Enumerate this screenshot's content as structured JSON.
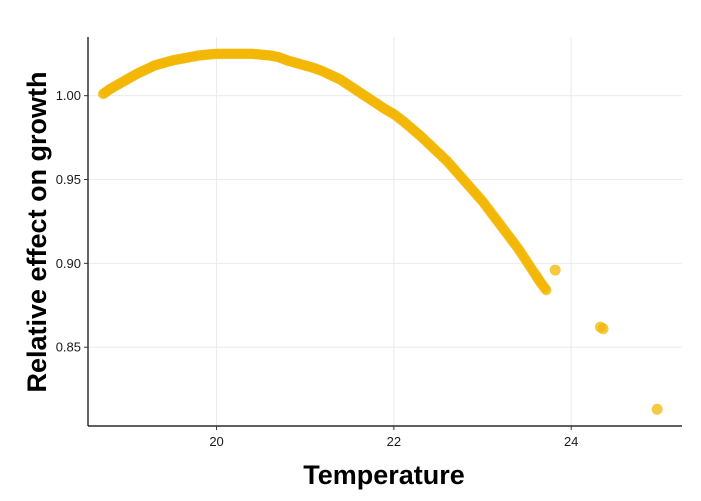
{
  "chart_data": {
    "type": "scatter",
    "title": "",
    "xlabel": "Temperature",
    "ylabel": "Relative effect on growth",
    "xlim": [
      18.55,
      25.25
    ],
    "ylim": [
      0.803,
      1.035
    ],
    "x_ticks": [
      20,
      22,
      24
    ],
    "y_ticks": [
      0.85,
      0.9,
      0.95,
      1.0
    ],
    "x_tick_labels": [
      "20",
      "22",
      "24"
    ],
    "y_tick_labels": [
      "0.85",
      "0.90",
      "0.95",
      "1.00"
    ],
    "grid": true,
    "legend": "none",
    "point_color": "#f2b705",
    "curve": {
      "description_model": "quadratic",
      "peak_x": 20.25,
      "peak_y": 1.025,
      "points": [
        [
          18.72,
          1.001
        ],
        [
          18.8,
          1.004
        ],
        [
          18.9,
          1.007
        ],
        [
          19.0,
          1.01
        ],
        [
          19.1,
          1.013
        ],
        [
          19.2,
          1.0155
        ],
        [
          19.3,
          1.018
        ],
        [
          19.4,
          1.0195
        ],
        [
          19.5,
          1.021
        ],
        [
          19.6,
          1.022
        ],
        [
          19.7,
          1.023
        ],
        [
          19.8,
          1.024
        ],
        [
          19.9,
          1.0245
        ],
        [
          20.0,
          1.025
        ],
        [
          20.1,
          1.025
        ],
        [
          20.2,
          1.025
        ],
        [
          20.3,
          1.025
        ],
        [
          20.4,
          1.025
        ],
        [
          20.5,
          1.0245
        ],
        [
          20.6,
          1.024
        ],
        [
          20.7,
          1.023
        ],
        [
          20.8,
          1.021
        ],
        [
          20.9,
          1.0195
        ],
        [
          21.0,
          1.018
        ],
        [
          21.1,
          1.0165
        ],
        [
          21.2,
          1.0145
        ],
        [
          21.3,
          1.012
        ],
        [
          21.4,
          1.0095
        ],
        [
          21.5,
          1.006
        ],
        [
          21.6,
          1.0025
        ],
        [
          21.7,
          0.999
        ],
        [
          21.8,
          0.9955
        ],
        [
          21.9,
          0.992
        ],
        [
          22.0,
          0.989
        ],
        [
          22.1,
          0.985
        ],
        [
          22.2,
          0.9805
        ],
        [
          22.3,
          0.976
        ],
        [
          22.4,
          0.971
        ],
        [
          22.5,
          0.966
        ],
        [
          22.6,
          0.961
        ],
        [
          22.7,
          0.955
        ],
        [
          22.8,
          0.949
        ],
        [
          22.9,
          0.943
        ],
        [
          23.0,
          0.937
        ],
        [
          23.1,
          0.93
        ],
        [
          23.2,
          0.923
        ],
        [
          23.3,
          0.916
        ],
        [
          23.4,
          0.909
        ],
        [
          23.5,
          0.901
        ],
        [
          23.6,
          0.893
        ],
        [
          23.65,
          0.889
        ],
        [
          23.72,
          0.884
        ]
      ]
    },
    "outliers": [
      [
        23.82,
        0.896
      ],
      [
        24.33,
        0.862
      ],
      [
        24.36,
        0.861
      ],
      [
        24.97,
        0.813
      ]
    ]
  }
}
